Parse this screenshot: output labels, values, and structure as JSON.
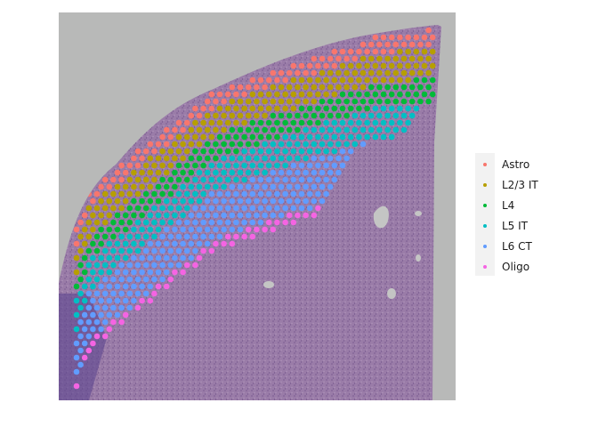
{
  "image": {
    "description_icon": "tissue-section-icon",
    "background_color": "#b8b9b8",
    "tissue_color": "#8f6f9e",
    "tissue_dark_color": "#6d4f86"
  },
  "legend": {
    "items": [
      {
        "label": "Astro",
        "color": "#f8766d"
      },
      {
        "label": "L2/3 IT",
        "color": "#b79f00"
      },
      {
        "label": "L4",
        "color": "#00ba38"
      },
      {
        "label": "L5 IT",
        "color": "#00bfc4"
      },
      {
        "label": "L6 CT",
        "color": "#619cff"
      },
      {
        "label": "Oligo",
        "color": "#f564e3"
      }
    ]
  }
}
